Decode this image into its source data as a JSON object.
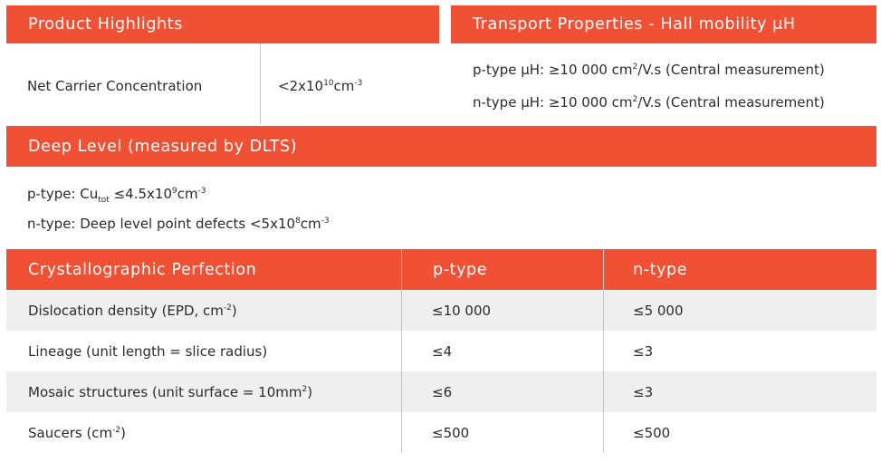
{
  "product_highlights": {
    "title": "Product Highlights",
    "label": "Net Carrier Concentration",
    "value_base": "<2x10",
    "value_exp": "10",
    "value_unit": "cm",
    "value_unit_exp": "-3"
  },
  "transport": {
    "title": "Transport Properties - Hall mobility μH",
    "p_line": {
      "prefix": "p-type μH: ≥10 000 cm",
      "exp": "2",
      "suffix": "/V.s (Central measurement)"
    },
    "n_line": {
      "prefix": "n-type μH: ≥10 000 cm",
      "exp": "2",
      "suffix": "/V.s (Central measurement)"
    }
  },
  "deep_level": {
    "title": "Deep Level (measured by DLTS)",
    "p_line": {
      "prefix": "p-type: Cu",
      "sub": "tot",
      "mid": " ≤4.5x10",
      "exp1": "9",
      "unit": "cm",
      "exp2": "-3"
    },
    "n_line": {
      "prefix": "n-type: Deep level point defects <5x10",
      "exp1": "8",
      "unit": "cm",
      "exp2": "-3"
    }
  },
  "crystallographic": {
    "headers": {
      "property": "Crystallographic Perfection",
      "p": "p-type",
      "n": "n-type"
    },
    "rows": [
      {
        "pre": "Dislocation density (EPD, cm",
        "exp": "-2",
        "post": ")",
        "p": "≤10 000",
        "n": "≤5 000"
      },
      {
        "pre": "Lineage (unit length = slice radius)",
        "exp": "",
        "post": "",
        "p": "≤4",
        "n": "≤3"
      },
      {
        "pre": "Mosaic structures (unit surface = 10mm",
        "exp": "2",
        "post": ")",
        "p": "≤6",
        "n": "≤3"
      },
      {
        "pre": "Saucers (cm",
        "exp": "-2",
        "post": ")",
        "p": "≤500",
        "n": "≤500"
      }
    ]
  },
  "colors": {
    "accent": "#f05033",
    "row_shade": "#efefef",
    "divider": "#c4c4c4"
  }
}
